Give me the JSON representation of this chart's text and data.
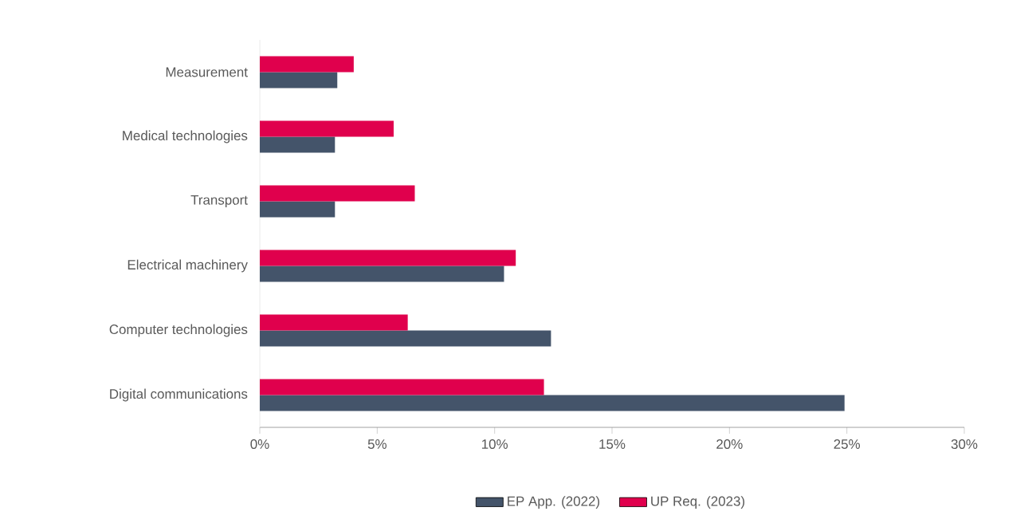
{
  "chart_data": {
    "type": "bar",
    "orientation": "horizontal",
    "categories": [
      "Measurement",
      "Medical technologies",
      "Transport",
      "Electrical machinery",
      "Computer technologies",
      "Digital communications"
    ],
    "series": [
      {
        "name": "EP App. (2022)",
        "color": "#44546a",
        "values": [
          3.3,
          3.2,
          3.2,
          10.4,
          12.4,
          24.9
        ]
      },
      {
        "name": "UP Req. (2023)",
        "color": "#e0004d",
        "values": [
          4.0,
          5.7,
          6.6,
          10.9,
          6.3,
          12.1
        ]
      }
    ],
    "xlim": [
      0,
      30
    ],
    "xticks": [
      {
        "value": 0,
        "label": "0%"
      },
      {
        "value": 5,
        "label": "5%"
      },
      {
        "value": 10,
        "label": "10%"
      },
      {
        "value": 15,
        "label": "15%"
      },
      {
        "value": 20,
        "label": "20%"
      },
      {
        "value": 25,
        "label": "25%"
      },
      {
        "value": 30,
        "label": "30%"
      }
    ],
    "grid": false,
    "legend": "bottom"
  }
}
